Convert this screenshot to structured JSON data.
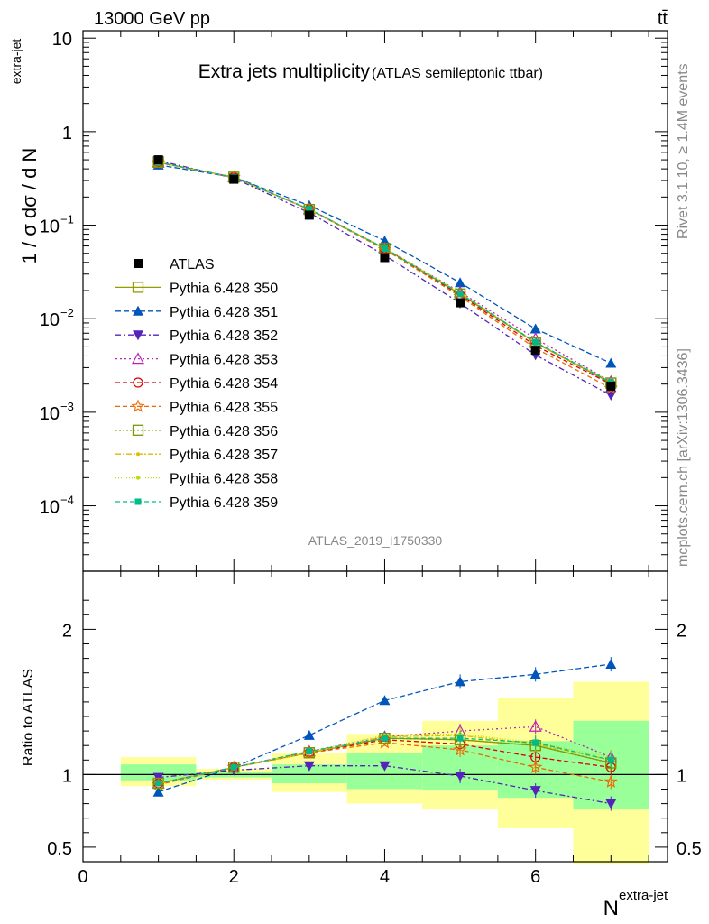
{
  "header": {
    "left": "13000 GeV pp",
    "right": "tt̄"
  },
  "side_labels": {
    "rivet": "Rivet 3.1.10, ≥ 1.4M events",
    "mcplots": "mcplots.cern.ch [arXiv:1306.3436]"
  },
  "colors": {
    "data": "#000000",
    "band_yellow": "#ffff99",
    "band_green": "#99ff99"
  },
  "chart_data": [
    {
      "type": "scatter",
      "title": "Extra jets multiplicity",
      "subtitle": "(ATLAS semileptonic ttbar)",
      "ylabel": "1 / σ dσ / d N",
      "ylabel_sup": "extra-jet",
      "yscale": "log",
      "ylim": [
        2e-05,
        12
      ],
      "y_ticks": [
        {
          "v": 10,
          "label": "10",
          "exp": ""
        },
        {
          "v": 1,
          "label": "1",
          "exp": ""
        },
        {
          "v": 0.1,
          "label": "10",
          "exp": "−1"
        },
        {
          "v": 0.01,
          "label": "10",
          "exp": "−2"
        },
        {
          "v": 0.001,
          "label": "10",
          "exp": "−3"
        },
        {
          "v": 0.0001,
          "label": "10",
          "exp": "−4"
        }
      ],
      "watermark": "ATLAS_2019_I1750330",
      "legend_position": "left",
      "x": [
        1,
        2,
        3,
        4,
        5,
        6,
        7
      ],
      "data": {
        "name": "ATLAS",
        "values": [
          0.5,
          0.31,
          0.128,
          0.045,
          0.0148,
          0.0046,
          0.0019
        ]
      },
      "series": [
        {
          "name": "Pythia 6.428 350",
          "color": "#999900",
          "marker": "open-square",
          "dash": "",
          "ratio": [
            0.94,
            1.05,
            1.15,
            1.25,
            1.24,
            1.2,
            1.08
          ]
        },
        {
          "name": "Pythia 6.428 351",
          "color": "#0055bb",
          "marker": "triangle-up",
          "dash": "6,3",
          "ratio": [
            0.88,
            1.05,
            1.27,
            1.51,
            1.64,
            1.69,
            1.76
          ]
        },
        {
          "name": "Pythia 6.428 352",
          "color": "#5522bb",
          "marker": "triangle-down",
          "dash": "6,3,2,3",
          "ratio": [
            0.98,
            1.03,
            1.06,
            1.06,
            0.99,
            0.89,
            0.8
          ]
        },
        {
          "name": "Pythia 6.428 353",
          "color": "#bb22bb",
          "marker": "open-triangle",
          "dash": "2,3",
          "ratio": [
            0.94,
            1.05,
            1.16,
            1.26,
            1.3,
            1.33,
            1.12
          ]
        },
        {
          "name": "Pythia 6.428 354",
          "color": "#dd0000",
          "marker": "open-circle",
          "dash": "5,3",
          "ratio": [
            0.94,
            1.05,
            1.15,
            1.24,
            1.21,
            1.12,
            1.05
          ]
        },
        {
          "name": "Pythia 6.428 355",
          "color": "#ee6600",
          "marker": "open-star",
          "dash": "5,3",
          "ratio": [
            0.93,
            1.05,
            1.15,
            1.22,
            1.17,
            1.05,
            0.95
          ]
        },
        {
          "name": "Pythia 6.428 356",
          "color": "#779900",
          "marker": "open-square",
          "dash": "2,2",
          "ratio": [
            0.94,
            1.05,
            1.15,
            1.25,
            1.24,
            1.2,
            1.08
          ]
        },
        {
          "name": "Pythia 6.428 357",
          "color": "#ddbb00",
          "marker": "small-dot",
          "dash": "6,2,2,2",
          "ratio": [
            0.94,
            1.05,
            1.15,
            1.26,
            1.27,
            1.21,
            1.1
          ]
        },
        {
          "name": "Pythia 6.428 358",
          "color": "#bbdd00",
          "marker": "small-dot",
          "dash": "1,2",
          "ratio": [
            0.94,
            1.05,
            1.16,
            1.27,
            1.28,
            1.22,
            1.12
          ]
        },
        {
          "name": "Pythia 6.428 359",
          "color": "#00bb88",
          "marker": "filled-square",
          "dash": "5,3",
          "ratio": [
            0.94,
            1.05,
            1.16,
            1.25,
            1.25,
            1.22,
            1.1
          ]
        }
      ]
    },
    {
      "type": "scatter",
      "ylabel": "Ratio to ATLAS",
      "xlabel": "N",
      "xlabel_sup": "extra-jet",
      "xlim": [
        0,
        7.75
      ],
      "ylim": [
        0.4,
        2.4
      ],
      "x_ticks": [
        0,
        2,
        4,
        6
      ],
      "y_ticks": [
        0.5,
        1,
        2
      ],
      "reference": 1,
      "bands": [
        {
          "x0": 0.5,
          "x1": 1.5,
          "yellow": [
            0.92,
            1.12
          ],
          "green": [
            0.96,
            1.07
          ]
        },
        {
          "x0": 1.5,
          "x1": 2.5,
          "yellow": [
            0.965,
            1.04
          ],
          "green": [
            0.98,
            1.02
          ]
        },
        {
          "x0": 2.5,
          "x1": 3.5,
          "yellow": [
            0.88,
            1.15
          ],
          "green": [
            0.94,
            1.07
          ]
        },
        {
          "x0": 3.5,
          "x1": 4.5,
          "yellow": [
            0.8,
            1.28
          ],
          "green": [
            0.9,
            1.15
          ]
        },
        {
          "x0": 4.5,
          "x1": 5.5,
          "yellow": [
            0.76,
            1.37
          ],
          "green": [
            0.89,
            1.2
          ]
        },
        {
          "x0": 5.5,
          "x1": 6.5,
          "yellow": [
            0.63,
            1.53
          ],
          "green": [
            0.84,
            1.23
          ]
        },
        {
          "x0": 6.5,
          "x1": 7.5,
          "yellow": [
            0.38,
            1.64
          ],
          "green": [
            0.76,
            1.37
          ]
        }
      ]
    }
  ]
}
